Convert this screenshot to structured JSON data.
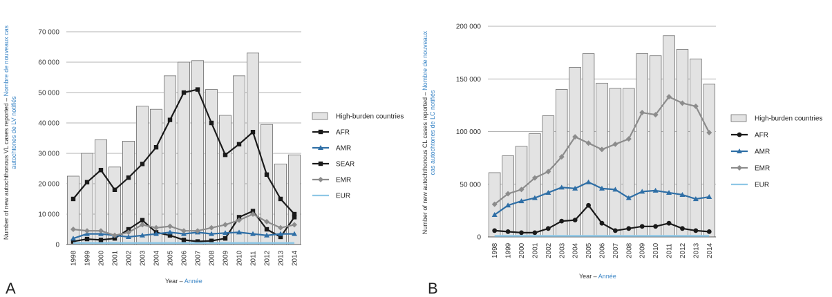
{
  "colors": {
    "bar_fill": "#e3e3e3",
    "bar_stroke": "#6f6f6f",
    "french_text": "#3b86c6",
    "AFR": "#1a1a1a",
    "AMR": "#2f6fa6",
    "SEAR": "#1a1a1a",
    "EMR": "#8c8c8c",
    "EUR": "#8ec7e6"
  },
  "chart_data": [
    {
      "panel": "A",
      "type": "bar",
      "x": [
        "1998",
        "1999",
        "2000",
        "2001",
        "2002",
        "2003",
        "2004",
        "2005",
        "2006",
        "2007",
        "2008",
        "2009",
        "2010",
        "2011",
        "2012",
        "2013",
        "2014"
      ],
      "ylim": [
        0,
        70000
      ],
      "yticks": [
        0,
        10000,
        20000,
        30000,
        40000,
        50000,
        60000,
        70000
      ],
      "ytick_labels": [
        "0",
        "10 000",
        "20 000",
        "30 000",
        "40 000",
        "50 000",
        "60 000",
        "70 000"
      ],
      "xlabel_en": "Year –",
      "xlabel_fr": "Année",
      "ylabel_en": "Number of new autochthonous VL cases reported –",
      "ylabel_fr_1": "Nombre de nouveaux cas",
      "ylabel_fr_2": "autochtones de LV notifiés",
      "bars": {
        "name": "High-burden countries",
        "values": [
          22500,
          30000,
          34500,
          25500,
          34000,
          45500,
          44500,
          55500,
          60000,
          60500,
          51000,
          42500,
          55500,
          63000,
          39500,
          26500,
          29500
        ]
      },
      "series": [
        {
          "name": "AFR",
          "marker": "square",
          "values": [
            1000,
            1800,
            1500,
            2000,
            5000,
            8000,
            4000,
            3000,
            1500,
            1000,
            1200,
            2000,
            9000,
            11000,
            5000,
            2500,
            9000
          ]
        },
        {
          "name": "AMR",
          "marker": "triangle",
          "values": [
            2000,
            3500,
            3500,
            3000,
            2500,
            3000,
            3500,
            4000,
            3500,
            4000,
            3500,
            3800,
            4000,
            3500,
            3000,
            3500,
            3500
          ]
        },
        {
          "name": "SEAR",
          "marker": "square",
          "values": [
            15000,
            20500,
            24500,
            18000,
            22000,
            26500,
            32000,
            41000,
            50000,
            51000,
            40000,
            29500,
            33000,
            37000,
            23000,
            15000,
            10000
          ]
        },
        {
          "name": "EMR",
          "marker": "diamond",
          "values": [
            5000,
            4500,
            4500,
            3000,
            4000,
            6500,
            5500,
            6000,
            4500,
            4500,
            5500,
            6500,
            8000,
            10000,
            7500,
            5500,
            6500
          ]
        },
        {
          "name": "EUR",
          "marker": "none",
          "values": [
            500,
            500,
            500,
            500,
            500,
            500,
            500,
            500,
            500,
            500,
            500,
            500,
            500,
            500,
            500,
            500,
            500
          ]
        }
      ],
      "legend": {
        "placement": "right",
        "entries": [
          "High-burden countries",
          "AFR",
          "AMR",
          "SEAR",
          "EMR",
          "EUR"
        ]
      },
      "grid": "horizontal"
    },
    {
      "panel": "B",
      "type": "bar",
      "x": [
        "1998",
        "1999",
        "2000",
        "2001",
        "2002",
        "2003",
        "2004",
        "2005",
        "2006",
        "2007",
        "2008",
        "2009",
        "2010",
        "2011",
        "2012",
        "2013",
        "2014"
      ],
      "ylim": [
        0,
        200000
      ],
      "yticks": [
        0,
        50000,
        100000,
        150000,
        200000
      ],
      "ytick_labels": [
        "0",
        "50 000",
        "100 000",
        "150 000",
        "200 000"
      ],
      "xlabel_en": "Year –",
      "xlabel_fr": "Année",
      "ylabel_en": "Number of new autochthonous CL cases reported –",
      "ylabel_fr_1": "Nombre de nouveaux",
      "ylabel_fr_2": "cas autochtones de LC notifiés",
      "bars": {
        "name": "High-burden countries",
        "values": [
          61000,
          77000,
          86000,
          98000,
          115000,
          140000,
          161000,
          174000,
          146000,
          141000,
          141000,
          174000,
          172000,
          191000,
          178000,
          169000,
          145000
        ]
      },
      "series": [
        {
          "name": "AFR",
          "marker": "circle",
          "values": [
            6000,
            5000,
            4000,
            4000,
            8000,
            15000,
            16000,
            30000,
            13000,
            6000,
            8000,
            10000,
            10000,
            13000,
            8000,
            6000,
            5000
          ]
        },
        {
          "name": "AMR",
          "marker": "triangle",
          "values": [
            21000,
            30000,
            34000,
            37000,
            42000,
            47000,
            46000,
            52000,
            46000,
            45000,
            37000,
            43000,
            44000,
            42000,
            40000,
            36000,
            38000
          ]
        },
        {
          "name": "EMR",
          "marker": "diamond",
          "values": [
            31000,
            41000,
            45000,
            56000,
            62000,
            76000,
            95000,
            89000,
            83000,
            88000,
            93000,
            118000,
            116000,
            133000,
            127000,
            124000,
            99000
          ]
        },
        {
          "name": "EUR",
          "marker": "none",
          "values": [
            1000,
            1000,
            1000,
            1000,
            1000,
            1000,
            1000,
            1000,
            1000,
            1000,
            1000,
            1000,
            1000,
            1000,
            1000,
            1000,
            1000
          ]
        }
      ],
      "legend": {
        "placement": "right",
        "entries": [
          "High-burden countries",
          "AFR",
          "AMR",
          "EMR",
          "EUR"
        ]
      },
      "grid": "horizontal"
    }
  ]
}
